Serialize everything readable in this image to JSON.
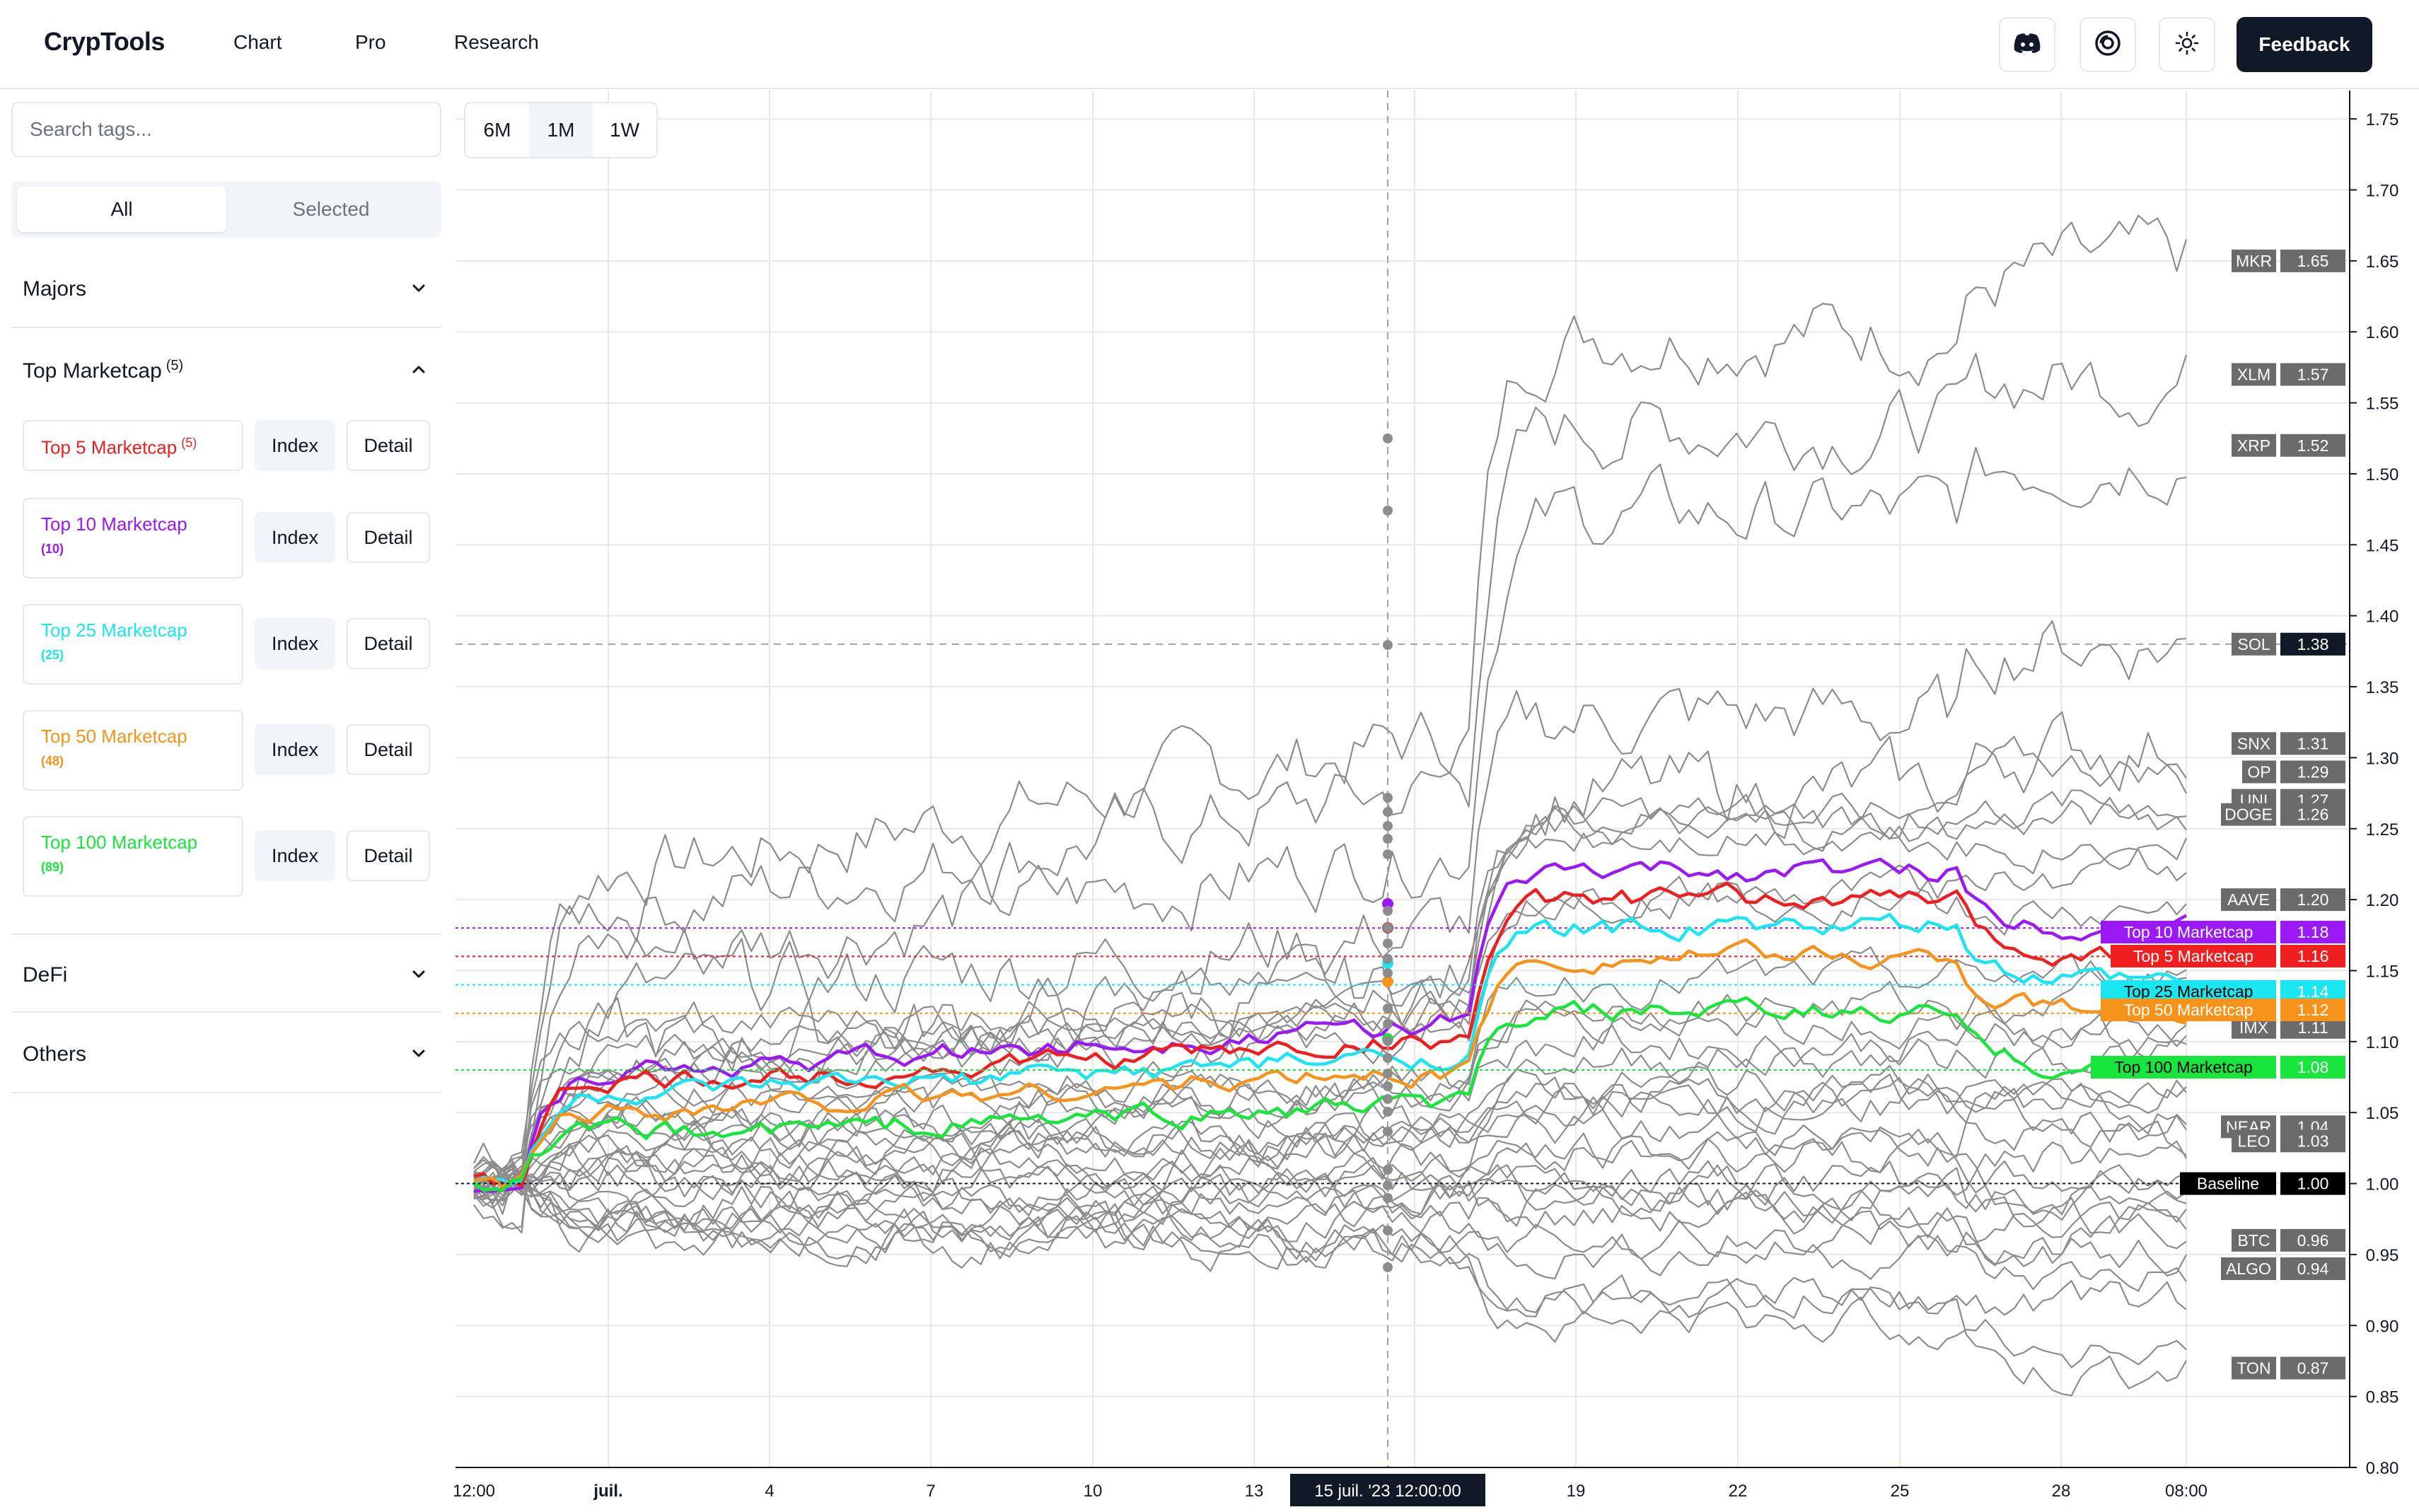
{
  "header": {
    "brand": "CrypTools",
    "nav": [
      "Chart",
      "Pro",
      "Research"
    ],
    "icons": [
      "discord-icon",
      "target-icon",
      "sun-icon"
    ],
    "feedback_label": "Feedback"
  },
  "sidebar": {
    "search_placeholder": "Search tags...",
    "segment": {
      "all_label": "All",
      "selected_label": "Selected",
      "active": "All"
    },
    "sections": [
      {
        "title": "Majors",
        "expanded": false
      },
      {
        "title": "Top Marketcap",
        "count": "(5)",
        "expanded": true
      },
      {
        "title": "DeFi",
        "expanded": false
      },
      {
        "title": "Others",
        "expanded": false
      }
    ],
    "tags": [
      {
        "name": "Top 5 Marketcap",
        "count": "(5)",
        "color": "#ef1f1f"
      },
      {
        "name": "Top 10 Marketcap",
        "count": "(10)",
        "color": "#9b19f5"
      },
      {
        "name": "Top 25 Marketcap",
        "count": "(25)",
        "color": "#19e6f0"
      },
      {
        "name": "Top 50 Marketcap",
        "count": "(48)",
        "color": "#f7931a"
      },
      {
        "name": "Top 100 Marketcap",
        "count": "(89)",
        "color": "#19e63c"
      }
    ],
    "index_label": "Index",
    "detail_label": "Detail"
  },
  "range_buttons": {
    "options": [
      "6M",
      "1M",
      "1W"
    ],
    "selected": "1M"
  },
  "chart_data": {
    "type": "line",
    "x_ticks": [
      "12:00",
      "juil.",
      "4",
      "7",
      "10",
      "13",
      "15 juil. '23   12:00:00",
      "19",
      "22",
      "25",
      "28",
      "08:00"
    ],
    "y_ticks": [
      "0.80",
      "0.85",
      "0.90",
      "0.95",
      "1.00",
      "1.05",
      "1.10",
      "1.15",
      "1.20",
      "1.25",
      "1.30",
      "1.35",
      "1.40",
      "1.45",
      "1.50",
      "1.55",
      "1.60",
      "1.65",
      "1.70",
      "1.75"
    ],
    "ylim": [
      0.8,
      1.77
    ],
    "crosshair": {
      "date_label": "15 juil. '23   12:00:00",
      "y_value": "1.38"
    },
    "index_series": [
      {
        "name": "Top 10 Marketcap",
        "color": "#9b19f5",
        "last": "1.18",
        "peak": "1.22"
      },
      {
        "name": "Top 5 Marketcap",
        "color": "#ef1f1f",
        "last": "1.16",
        "peak": "1.20"
      },
      {
        "name": "Top 25 Marketcap",
        "color": "#19e6f0",
        "last": "1.14",
        "peak": "1.18"
      },
      {
        "name": "Top 50 Marketcap",
        "color": "#f7931a",
        "last": "1.12",
        "peak": "1.16"
      },
      {
        "name": "Top 100 Marketcap",
        "color": "#19e63c",
        "last": "1.08",
        "peak": "1.12"
      }
    ],
    "baseline": {
      "name": "Baseline",
      "value": "1.00"
    },
    "asset_labels": [
      {
        "name": "MKR",
        "value": "1.65"
      },
      {
        "name": "XLM",
        "value": "1.57"
      },
      {
        "name": "XRP",
        "value": "1.52"
      },
      {
        "name": "SOL",
        "value": "1.38"
      },
      {
        "name": "SNX",
        "value": "1.31"
      },
      {
        "name": "OP",
        "value": "1.29"
      },
      {
        "name": "UNI",
        "value": "1.27"
      },
      {
        "name": "DOGE",
        "value": "1.26"
      },
      {
        "name": "AAVE",
        "value": "1.20"
      },
      {
        "name": "IMX",
        "value": "1.11"
      },
      {
        "name": "NEAR",
        "value": "1.04"
      },
      {
        "name": "LEO",
        "value": "1.03"
      },
      {
        "name": "BTC",
        "value": "0.96"
      },
      {
        "name": "ALGO",
        "value": "0.94"
      },
      {
        "name": "TON",
        "value": "0.87"
      }
    ]
  }
}
